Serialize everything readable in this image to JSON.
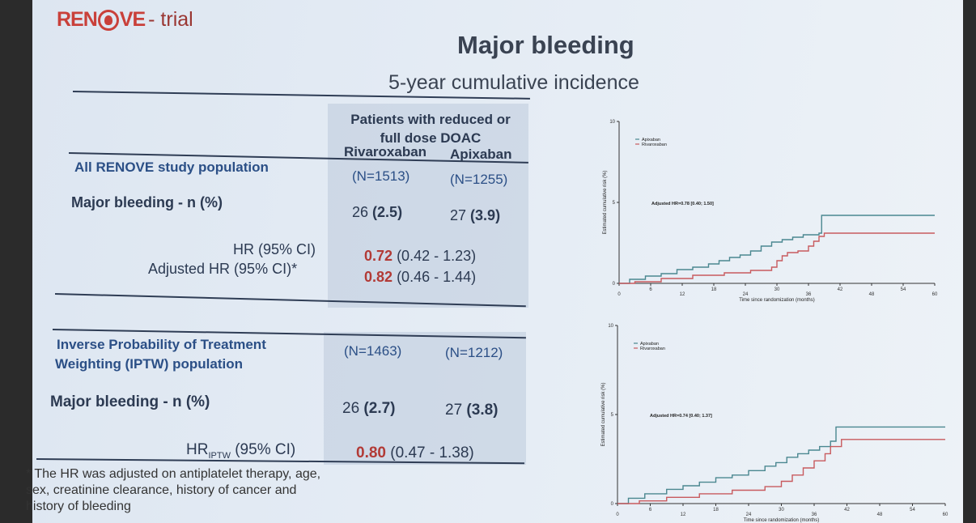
{
  "header": {
    "logo_left": "RENOVE",
    "logo_right": "- trial",
    "title": "Major bleeding",
    "subtitle": "5-year cumulative incidence"
  },
  "table1": {
    "group_header": "Patients with reduced or full dose DOAC",
    "col1": "Rivaroxaban",
    "col2": "Apixaban",
    "population": "All RENOVE study population",
    "n1": "(N=1513)",
    "n2": "(N=1255)",
    "row_label": "Major bleeding - n (%)",
    "mb1_n": "26",
    "mb1_pct": "(2.5)",
    "mb2_n": "27",
    "mb2_pct": "(3.9)",
    "hr_label": "HR (95% CI)",
    "hr_value": "0.72",
    "hr_ci": "(0.42 - 1.23)",
    "adj_label": "Adjusted HR (95% CI)*",
    "adj_value": "0.82",
    "adj_ci": "(0.46 - 1.44)"
  },
  "table2": {
    "population_line1": "Inverse Probability of Treatment",
    "population_line2": "Weighting (IPTW) population",
    "n1": "(N=1463)",
    "n2": "(N=1212)",
    "row_label": "Major bleeding - n (%)",
    "mb1_n": "26",
    "mb1_pct": "(2.7)",
    "mb2_n": "27",
    "mb2_pct": "(3.8)",
    "hr_prefix": "HR",
    "hr_sub": "IPTW",
    "hr_suffix": "(95% CI)",
    "hr_value": "0.80",
    "hr_ci": "(0.47 - 1.38)"
  },
  "footnote": "* The HR was adjusted on antiplatelet therapy, age, sex, creatinine  clearance, history of cancer and history of bleeding",
  "colors": {
    "apixaban": "#4a8790",
    "rivaroxaban": "#c85a5e",
    "accent_red": "#b23a36"
  },
  "chart_data": [
    {
      "type": "line",
      "step": true,
      "xlabel": "Time since randomization (months)",
      "ylabel": "Estimated cumulative risk (%)",
      "xlim": [
        0,
        60
      ],
      "ylim": [
        0,
        10
      ],
      "xticks": [
        0,
        6,
        12,
        18,
        24,
        30,
        36,
        42,
        48,
        54,
        60
      ],
      "yticks": [
        0,
        5,
        10
      ],
      "legend": [
        "Apixaban",
        "Rivaroxaban"
      ],
      "legend_position": "top-left",
      "annotation": "Adjusted HR=0.78 [0.40; 1.50]",
      "series": [
        {
          "name": "Apixaban",
          "color": "#4a8790",
          "x": [
            0,
            2,
            5,
            8,
            11,
            14,
            17,
            19,
            21,
            23,
            25,
            27,
            29,
            31,
            33,
            35,
            38,
            38.5,
            60
          ],
          "y": [
            0,
            0.25,
            0.45,
            0.6,
            0.85,
            1.0,
            1.2,
            1.4,
            1.6,
            1.75,
            2.0,
            2.3,
            2.55,
            2.7,
            2.85,
            3.0,
            3.1,
            4.2,
            4.2
          ]
        },
        {
          "name": "Rivaroxaban",
          "color": "#c85a5e",
          "x": [
            0,
            3,
            8,
            14,
            20,
            25,
            29,
            30,
            31,
            32,
            34,
            36,
            37,
            38,
            39,
            60
          ],
          "y": [
            0,
            0.1,
            0.3,
            0.5,
            0.65,
            0.8,
            1.0,
            1.4,
            1.7,
            1.9,
            2.0,
            2.3,
            2.6,
            2.9,
            3.1,
            3.1
          ]
        }
      ]
    },
    {
      "type": "line",
      "step": true,
      "xlabel": "Time since randomization (months)",
      "ylabel": "Estimated cumulative risk (%)",
      "xlim": [
        0,
        60
      ],
      "ylim": [
        0,
        10
      ],
      "xticks": [
        0,
        6,
        12,
        18,
        24,
        30,
        36,
        42,
        48,
        54,
        60
      ],
      "yticks": [
        0,
        5,
        10
      ],
      "legend": [
        "Apixaban",
        "Rivaroxaban"
      ],
      "legend_position": "top-left",
      "annotation": "Adjusted HR=0.74 [0.40; 1.37]",
      "series": [
        {
          "name": "Apixaban",
          "color": "#4a8790",
          "x": [
            0,
            2,
            5,
            9,
            12,
            15,
            18,
            21,
            24,
            27,
            29,
            31,
            33,
            35,
            37,
            39,
            40,
            60
          ],
          "y": [
            0,
            0.3,
            0.55,
            0.8,
            1.0,
            1.2,
            1.45,
            1.6,
            1.85,
            2.1,
            2.3,
            2.6,
            2.8,
            3.0,
            3.2,
            3.5,
            4.3,
            4.3
          ]
        },
        {
          "name": "Rivaroxaban",
          "color": "#c85a5e",
          "x": [
            0,
            4,
            9,
            15,
            21,
            27,
            30,
            32,
            34,
            36,
            38,
            39,
            41,
            60
          ],
          "y": [
            0,
            0.15,
            0.35,
            0.55,
            0.75,
            0.95,
            1.25,
            1.6,
            2.0,
            2.4,
            2.8,
            3.2,
            3.6,
            3.6
          ]
        }
      ]
    }
  ]
}
